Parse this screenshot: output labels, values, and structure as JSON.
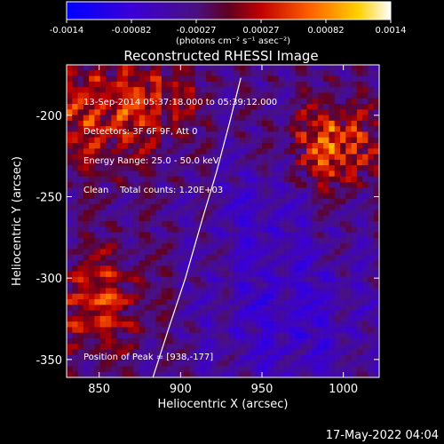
{
  "chart_data": {
    "type": "heatmap",
    "title": "Reconstructed RHESSI Image",
    "xlabel": "Heliocentric X (arcsec)",
    "ylabel": "Heliocentric Y (arcsec)",
    "xlim": [
      830,
      1022
    ],
    "ylim": [
      -361,
      -169
    ],
    "x_ticks": [
      850,
      900,
      950,
      1000
    ],
    "y_ticks": [
      -350,
      -300,
      -250,
      -200
    ],
    "colorbar": {
      "ticks": [
        "-0.0014",
        "-0.00082",
        "-0.00027",
        "0.00027",
        "0.00082",
        "0.0014"
      ],
      "range": [
        -0.0014,
        0.0014
      ],
      "units_label": "(photons cm⁻² s⁻¹ asec⁻²)"
    },
    "info_lines": [
      "13-Sep-2014 05:37:18.000 to 05:39:12.000",
      "Detectors: 3F 6F 9F, Att 0",
      "Energy Range: 25.0 - 50.0 keV",
      "Clean    Total counts: 1.20E+03"
    ],
    "peak_label": "Position of Peak = [938,-177]",
    "limb_curve": [
      [
        883,
        -361
      ],
      [
        893,
        -330
      ],
      [
        903,
        -300
      ],
      [
        913,
        -265
      ],
      [
        922,
        -235
      ],
      [
        930,
        -205
      ],
      [
        937,
        -177
      ]
    ],
    "grid": false
  },
  "footer_timestamp": "17-May-2022 04:04"
}
